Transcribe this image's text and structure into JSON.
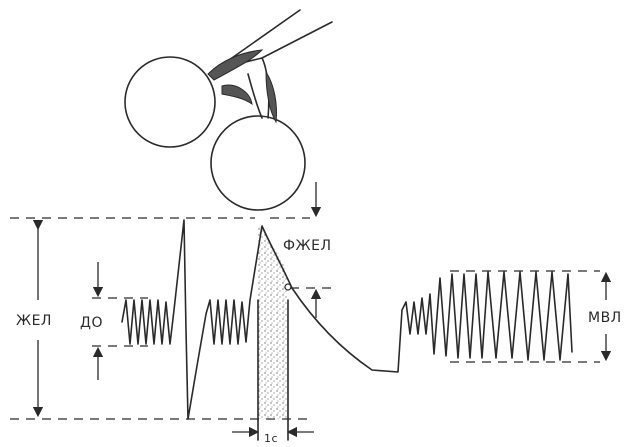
{
  "labels": {
    "vital_capacity": "ЖЕЛ",
    "tidal_volume": "ДО",
    "forced_vital_capacity": "ФЖЕЛ",
    "max_ventilation": "МВЛ",
    "time_interval": "1с"
  },
  "colors": {
    "ink": "#2a2a2a",
    "shade": "#555555",
    "stipple": "#6b6b6b",
    "background": "#ffffff"
  }
}
